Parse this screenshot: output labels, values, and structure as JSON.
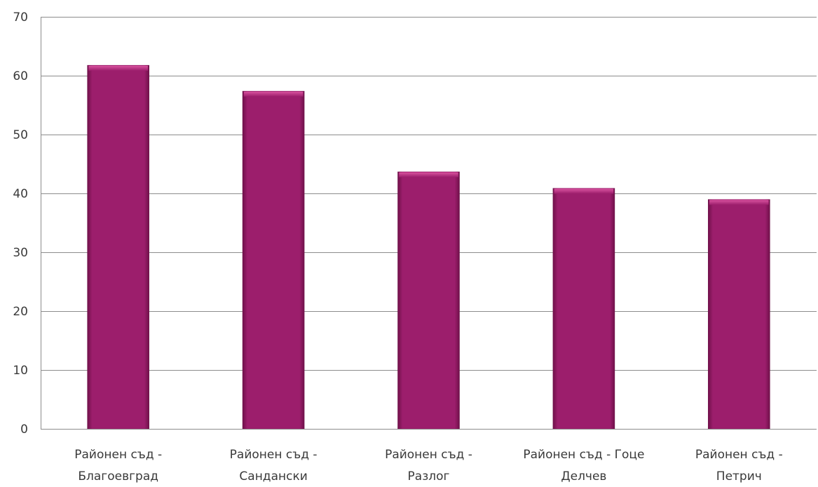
{
  "chart_data": {
    "type": "bar",
    "title": "",
    "xlabel": "",
    "ylabel": "",
    "categories": [
      [
        "Районен съд -",
        "Благоевград"
      ],
      [
        "Районен съд -",
        "Сандански"
      ],
      [
        "Районен съд -",
        "Разлог"
      ],
      [
        "Районен съд - Гоце",
        "Делчев"
      ],
      [
        "Районен съд -",
        "Петрич"
      ]
    ],
    "values": [
      61.8,
      57.4,
      43.7,
      40.9,
      39.0
    ],
    "ylim": [
      0,
      70
    ],
    "yticks": [
      "0",
      "10",
      "20",
      "30",
      "40",
      "50",
      "60",
      "70"
    ],
    "grid": true,
    "legend": "none",
    "colors": {
      "bar": "#9c1e6c",
      "bar_light": "#d9529f",
      "bar_dark": "#6e1049",
      "grid": "#8c8c8c",
      "text": "#3a3a3a"
    }
  }
}
